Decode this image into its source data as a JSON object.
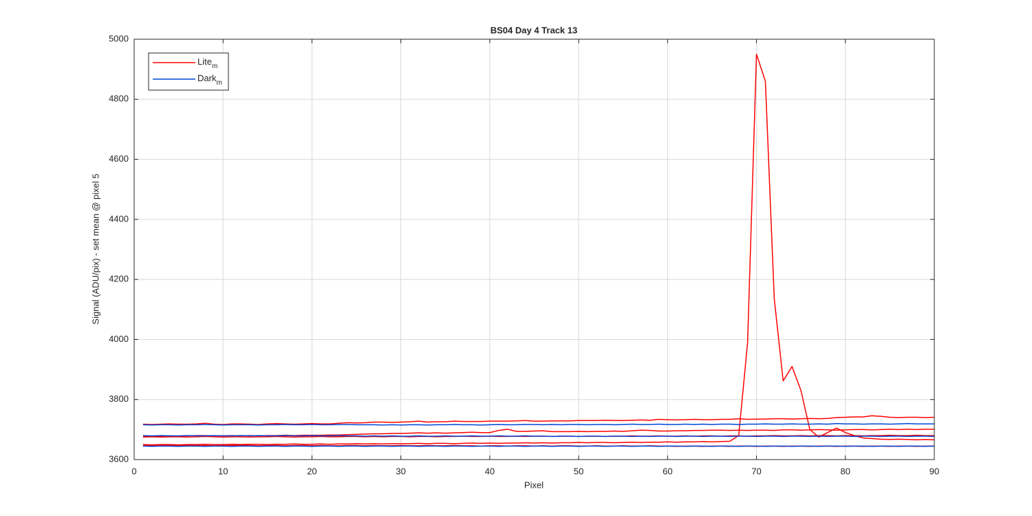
{
  "chart_data": {
    "type": "line",
    "title": "BS04 Day 4 Track 13",
    "x_label": "Pixel",
    "y_label": "Signal (ADU/pix) - set mean @ pixel 5",
    "xlim": [
      0,
      90
    ],
    "xticks": [
      0,
      10,
      20,
      30,
      40,
      50,
      60,
      70,
      80,
      90
    ],
    "ylim": [
      3600,
      5000
    ],
    "yticks": [
      3600,
      3800,
      4000,
      4200,
      4400,
      4600,
      4800,
      5000
    ],
    "grid": true,
    "legend": "upper left",
    "x": [
      1,
      2,
      3,
      4,
      5,
      6,
      7,
      8,
      9,
      10,
      11,
      12,
      13,
      14,
      15,
      16,
      17,
      18,
      19,
      20,
      21,
      22,
      23,
      24,
      25,
      26,
      27,
      28,
      29,
      30,
      31,
      32,
      33,
      34,
      35,
      36,
      37,
      38,
      39,
      40,
      41,
      42,
      43,
      44,
      45,
      46,
      47,
      48,
      49,
      50,
      51,
      52,
      53,
      54,
      55,
      56,
      57,
      58,
      59,
      60,
      61,
      62,
      63,
      64,
      65,
      66,
      67,
      68,
      69,
      70,
      71,
      72,
      73,
      74,
      75,
      76,
      77,
      78,
      79,
      80,
      81,
      82,
      83,
      84,
      85,
      86,
      87,
      88,
      89,
      90
    ],
    "series": [
      {
        "name": "Lite",
        "subscript": "m",
        "color": "#ff0000",
        "lines": [
          [
            3718,
            3717,
            3718,
            3719,
            3718,
            3718,
            3719,
            3721,
            3718,
            3717,
            3719,
            3719,
            3718,
            3717,
            3719,
            3720,
            3719,
            3718,
            3719,
            3720,
            3719,
            3719,
            3721,
            3723,
            3722,
            3723,
            3725,
            3725,
            3724,
            3725,
            3726,
            3728,
            3725,
            3726,
            3726,
            3728,
            3727,
            3727,
            3727,
            3728,
            3728,
            3728,
            3729,
            3730,
            3728,
            3728,
            3729,
            3729,
            3729,
            3730,
            3730,
            3730,
            3731,
            3730,
            3730,
            3731,
            3732,
            3731,
            3734,
            3733,
            3732,
            3733,
            3734,
            3733,
            3733,
            3734,
            3734,
            3736,
            3734,
            3735,
            3735,
            3736,
            3736,
            3735,
            3736,
            3737,
            3736,
            3737,
            3740,
            3741,
            3742,
            3742,
            3746,
            3744,
            3741,
            3740,
            3741,
            3741,
            3740,
            3741
          ],
          [
            3678,
            3677,
            3678,
            3679,
            3678,
            3679,
            3680,
            3680,
            3679,
            3679,
            3680,
            3679,
            3680,
            3679,
            3680,
            3680,
            3681,
            3680,
            3681,
            3681,
            3681,
            3682,
            3682,
            3683,
            3684,
            3685,
            3686,
            3686,
            3687,
            3687,
            3688,
            3689,
            3688,
            3689,
            3688,
            3689,
            3690,
            3691,
            3690,
            3690,
            3697,
            3701,
            3694,
            3694,
            3695,
            3696,
            3693,
            3693,
            3693,
            3694,
            3693,
            3694,
            3694,
            3695,
            3694,
            3696,
            3698,
            3697,
            3695,
            3695,
            3696,
            3696,
            3697,
            3697,
            3698,
            3698,
            3697,
            3698,
            3697,
            3698,
            3698,
            3697,
            3699,
            3699,
            3698,
            3699,
            3700,
            3699,
            3698,
            3699,
            3700,
            3700,
            3699,
            3700,
            3701,
            3700,
            3701,
            3700,
            3701,
            3701
          ],
          [
            3675,
            3676,
            3675,
            3676,
            3676,
            3675,
            3676,
            3677,
            3676,
            3675,
            3676,
            3676,
            3675,
            3676,
            3676,
            3677,
            3676,
            3675,
            3676,
            3676,
            3677,
            3676,
            3676,
            3677,
            3677,
            3676,
            3677,
            3676,
            3677,
            3677,
            3676,
            3677,
            3677,
            3676,
            3677,
            3677,
            3678,
            3677,
            3677,
            3678,
            3677,
            3677,
            3678,
            3677,
            3678,
            3678,
            3677,
            3678,
            3678,
            3677,
            3678,
            3678,
            3677,
            3678,
            3678,
            3679,
            3678,
            3678,
            3679,
            3678,
            3678,
            3679,
            3678,
            3679,
            3679,
            3678,
            3679,
            3679,
            3678,
            3679,
            3679,
            3680,
            3679,
            3679,
            3680,
            3679,
            3680,
            3680,
            3679,
            3680,
            3680,
            3679,
            3680,
            3680,
            3681,
            3680,
            3680,
            3681,
            3680,
            3680
          ],
          [
            3648,
            3647,
            3648,
            3647,
            3646,
            3648,
            3647,
            3647,
            3646,
            3647,
            3647,
            3648,
            3647,
            3646,
            3647,
            3647,
            3646,
            3647,
            3647,
            3646,
            3647,
            3646,
            3646,
            3647,
            3647,
            3646,
            3647,
            3646,
            3646,
            3647,
            3646,
            3646,
            3647,
            3646,
            3646,
            3647,
            3646,
            3646,
            3645,
            3646,
            3646,
            3645,
            3646,
            3646,
            3645,
            3646,
            3645,
            3646,
            3646,
            3645,
            3645,
            3646,
            3645,
            3645,
            3646,
            3645,
            3645,
            3646,
            3645,
            3645,
            3644,
            3645,
            3645,
            3644,
            3645,
            3645,
            3644,
            3645,
            3645,
            3644,
            3645,
            3645,
            3644,
            3645,
            3645,
            3644,
            3645,
            3645,
            3644,
            3645,
            3645,
            3644,
            3645,
            3645,
            3644,
            3645,
            3645,
            3644,
            3645,
            3645
          ],
          [
            3650,
            3649,
            3650,
            3650,
            3649,
            3650,
            3650,
            3651,
            3650,
            3650,
            3651,
            3650,
            3651,
            3651,
            3650,
            3651,
            3651,
            3652,
            3651,
            3651,
            3652,
            3651,
            3652,
            3652,
            3653,
            3652,
            3653,
            3652,
            3653,
            3653,
            3653,
            3654,
            3653,
            3654,
            3654,
            3653,
            3654,
            3655,
            3654,
            3655,
            3654,
            3655,
            3655,
            3656,
            3655,
            3656,
            3655,
            3656,
            3656,
            3657,
            3656,
            3657,
            3657,
            3656,
            3657,
            3658,
            3657,
            3658,
            3658,
            3659,
            3658,
            3659,
            3659,
            3660,
            3659,
            3660,
            3661,
            3680,
            3990,
            4950,
            4860,
            4135,
            3862,
            3910,
            3830,
            3700,
            3675,
            3690,
            3705,
            3690,
            3680,
            3672,
            3670,
            3668,
            3667,
            3668,
            3667,
            3666,
            3667,
            3666
          ]
        ]
      },
      {
        "name": "Dark",
        "subscript": "m",
        "color": "#0047d6",
        "lines": [
          [
            3716,
            3715,
            3716,
            3716,
            3715,
            3716,
            3716,
            3717,
            3716,
            3715,
            3716,
            3716,
            3716,
            3715,
            3716,
            3716,
            3717,
            3716,
            3716,
            3717,
            3716,
            3716,
            3717,
            3717,
            3716,
            3716,
            3716,
            3715,
            3716,
            3715,
            3716,
            3716,
            3715,
            3716,
            3716,
            3717,
            3716,
            3716,
            3715,
            3716,
            3717,
            3716,
            3716,
            3717,
            3717,
            3716,
            3717,
            3716,
            3717,
            3717,
            3716,
            3717,
            3717,
            3716,
            3717,
            3718,
            3717,
            3717,
            3718,
            3717,
            3717,
            3718,
            3717,
            3718,
            3717,
            3718,
            3718,
            3717,
            3718,
            3718,
            3719,
            3718,
            3718,
            3719,
            3718,
            3718,
            3719,
            3718,
            3720,
            3719,
            3719,
            3718,
            3719,
            3719,
            3718,
            3719,
            3720,
            3719,
            3719,
            3719
          ],
          [
            3680,
            3679,
            3680,
            3679,
            3679,
            3680,
            3679,
            3679,
            3680,
            3679,
            3679,
            3680,
            3679,
            3680,
            3679,
            3679,
            3680,
            3679,
            3679,
            3680,
            3679,
            3679,
            3680,
            3679,
            3679,
            3678,
            3679,
            3678,
            3679,
            3678,
            3678,
            3679,
            3678,
            3678,
            3679,
            3678,
            3678,
            3679,
            3678,
            3678,
            3679,
            3678,
            3678,
            3679,
            3678,
            3678,
            3677,
            3678,
            3678,
            3677,
            3678,
            3678,
            3677,
            3678,
            3678,
            3677,
            3678,
            3677,
            3678,
            3678,
            3677,
            3678,
            3678,
            3677,
            3678,
            3678,
            3677,
            3678,
            3678,
            3677,
            3678,
            3678,
            3677,
            3678,
            3678,
            3677,
            3678,
            3677,
            3678,
            3678,
            3677,
            3678,
            3678,
            3677,
            3678,
            3678,
            3677,
            3678,
            3678,
            3677
          ],
          [
            3645,
            3644,
            3645,
            3645,
            3644,
            3645,
            3645,
            3644,
            3645,
            3645,
            3644,
            3645,
            3645,
            3644,
            3645,
            3645,
            3644,
            3645,
            3645,
            3644,
            3645,
            3645,
            3644,
            3645,
            3645,
            3644,
            3645,
            3645,
            3644,
            3645,
            3645,
            3644,
            3645,
            3645,
            3644,
            3645,
            3645,
            3644,
            3645,
            3645,
            3644,
            3645,
            3645,
            3644,
            3645,
            3645,
            3644,
            3645,
            3645,
            3644,
            3645,
            3645,
            3644,
            3645,
            3645,
            3644,
            3645,
            3645,
            3644,
            3645,
            3645,
            3644,
            3645,
            3645,
            3644,
            3645,
            3645,
            3644,
            3645,
            3645,
            3644,
            3645,
            3645,
            3644,
            3645,
            3645,
            3644,
            3645,
            3645,
            3644,
            3645,
            3645,
            3644,
            3645,
            3645,
            3644,
            3645,
            3645,
            3644,
            3645
          ]
        ]
      }
    ]
  }
}
